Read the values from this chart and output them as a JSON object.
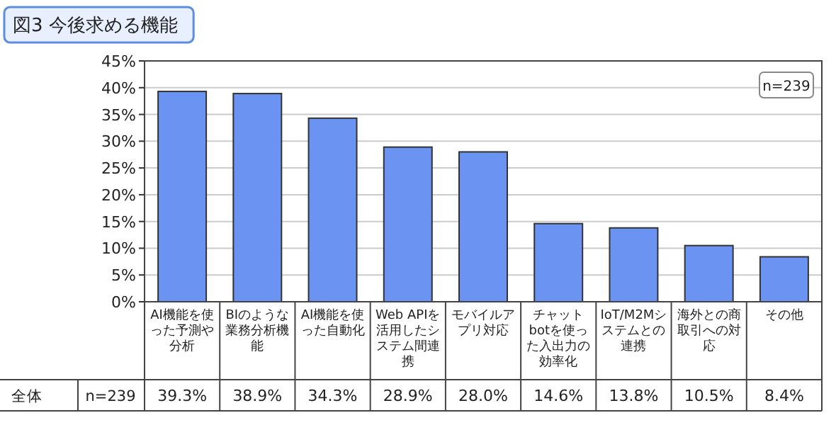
{
  "chart_data": {
    "type": "bar",
    "title": "図3 今後求める機能",
    "categories": [
      "AI機能を使った予測や分析",
      "BIのような業務分析機能",
      "AI機能を使った自動化",
      "Web APIを活用したシステム間連携",
      "モバイルアプリ対応",
      "チャットbotを使った入出力の効率化",
      "IoT/M2Mシステムとの連携",
      "海外との商取引への対応",
      "その他"
    ],
    "values": [
      39.3,
      38.9,
      34.3,
      28.9,
      28.0,
      14.6,
      13.8,
      10.5,
      8.4
    ],
    "color": "#6b93f2",
    "value_labels": [
      "39.3%",
      "38.9%",
      "34.3%",
      "28.9%",
      "28.0%",
      "14.6%",
      "13.8%",
      "10.5%",
      "8.4%"
    ],
    "ylim": [
      0,
      45
    ],
    "yticks": [
      {
        "value": 0,
        "label": "0%"
      },
      {
        "value": 5,
        "label": "5%"
      },
      {
        "value": 10,
        "label": "10%"
      },
      {
        "value": 15,
        "label": "15%"
      },
      {
        "value": 20,
        "label": "20%"
      },
      {
        "value": 25,
        "label": "25%"
      },
      {
        "value": 30,
        "label": "30%"
      },
      {
        "value": 35,
        "label": "35%"
      },
      {
        "value": 40,
        "label": "40%"
      },
      {
        "value": 45,
        "label": "45%"
      }
    ],
    "grid": "y",
    "annotations": [
      "n=239",
      "全体",
      "n=239"
    ]
  }
}
